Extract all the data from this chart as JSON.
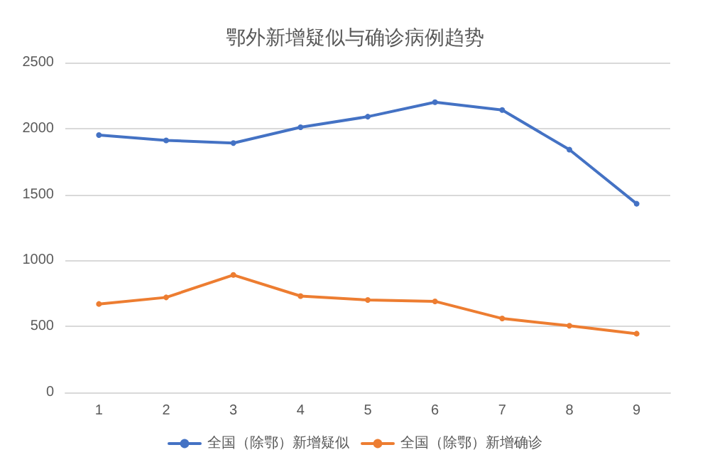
{
  "chart_data": {
    "type": "line",
    "title": "鄂外新增疑似与确诊病例趋势",
    "categories": [
      "1",
      "2",
      "3",
      "4",
      "5",
      "6",
      "7",
      "8",
      "9"
    ],
    "series": [
      {
        "name": "全国（除鄂）新增疑似",
        "color": "#4472c4",
        "values": [
          1950,
          1910,
          1890,
          2010,
          2090,
          2200,
          2140,
          1840,
          1430
        ]
      },
      {
        "name": "全国（除鄂）新增确诊",
        "color": "#ed7d31",
        "values": [
          670,
          720,
          890,
          730,
          700,
          690,
          560,
          505,
          445
        ]
      }
    ],
    "ylim": [
      0,
      2500
    ],
    "yticks": [
      0,
      500,
      1000,
      1500,
      2000,
      2500
    ],
    "grid": "y",
    "legend": "bottom",
    "marker": "circle"
  }
}
